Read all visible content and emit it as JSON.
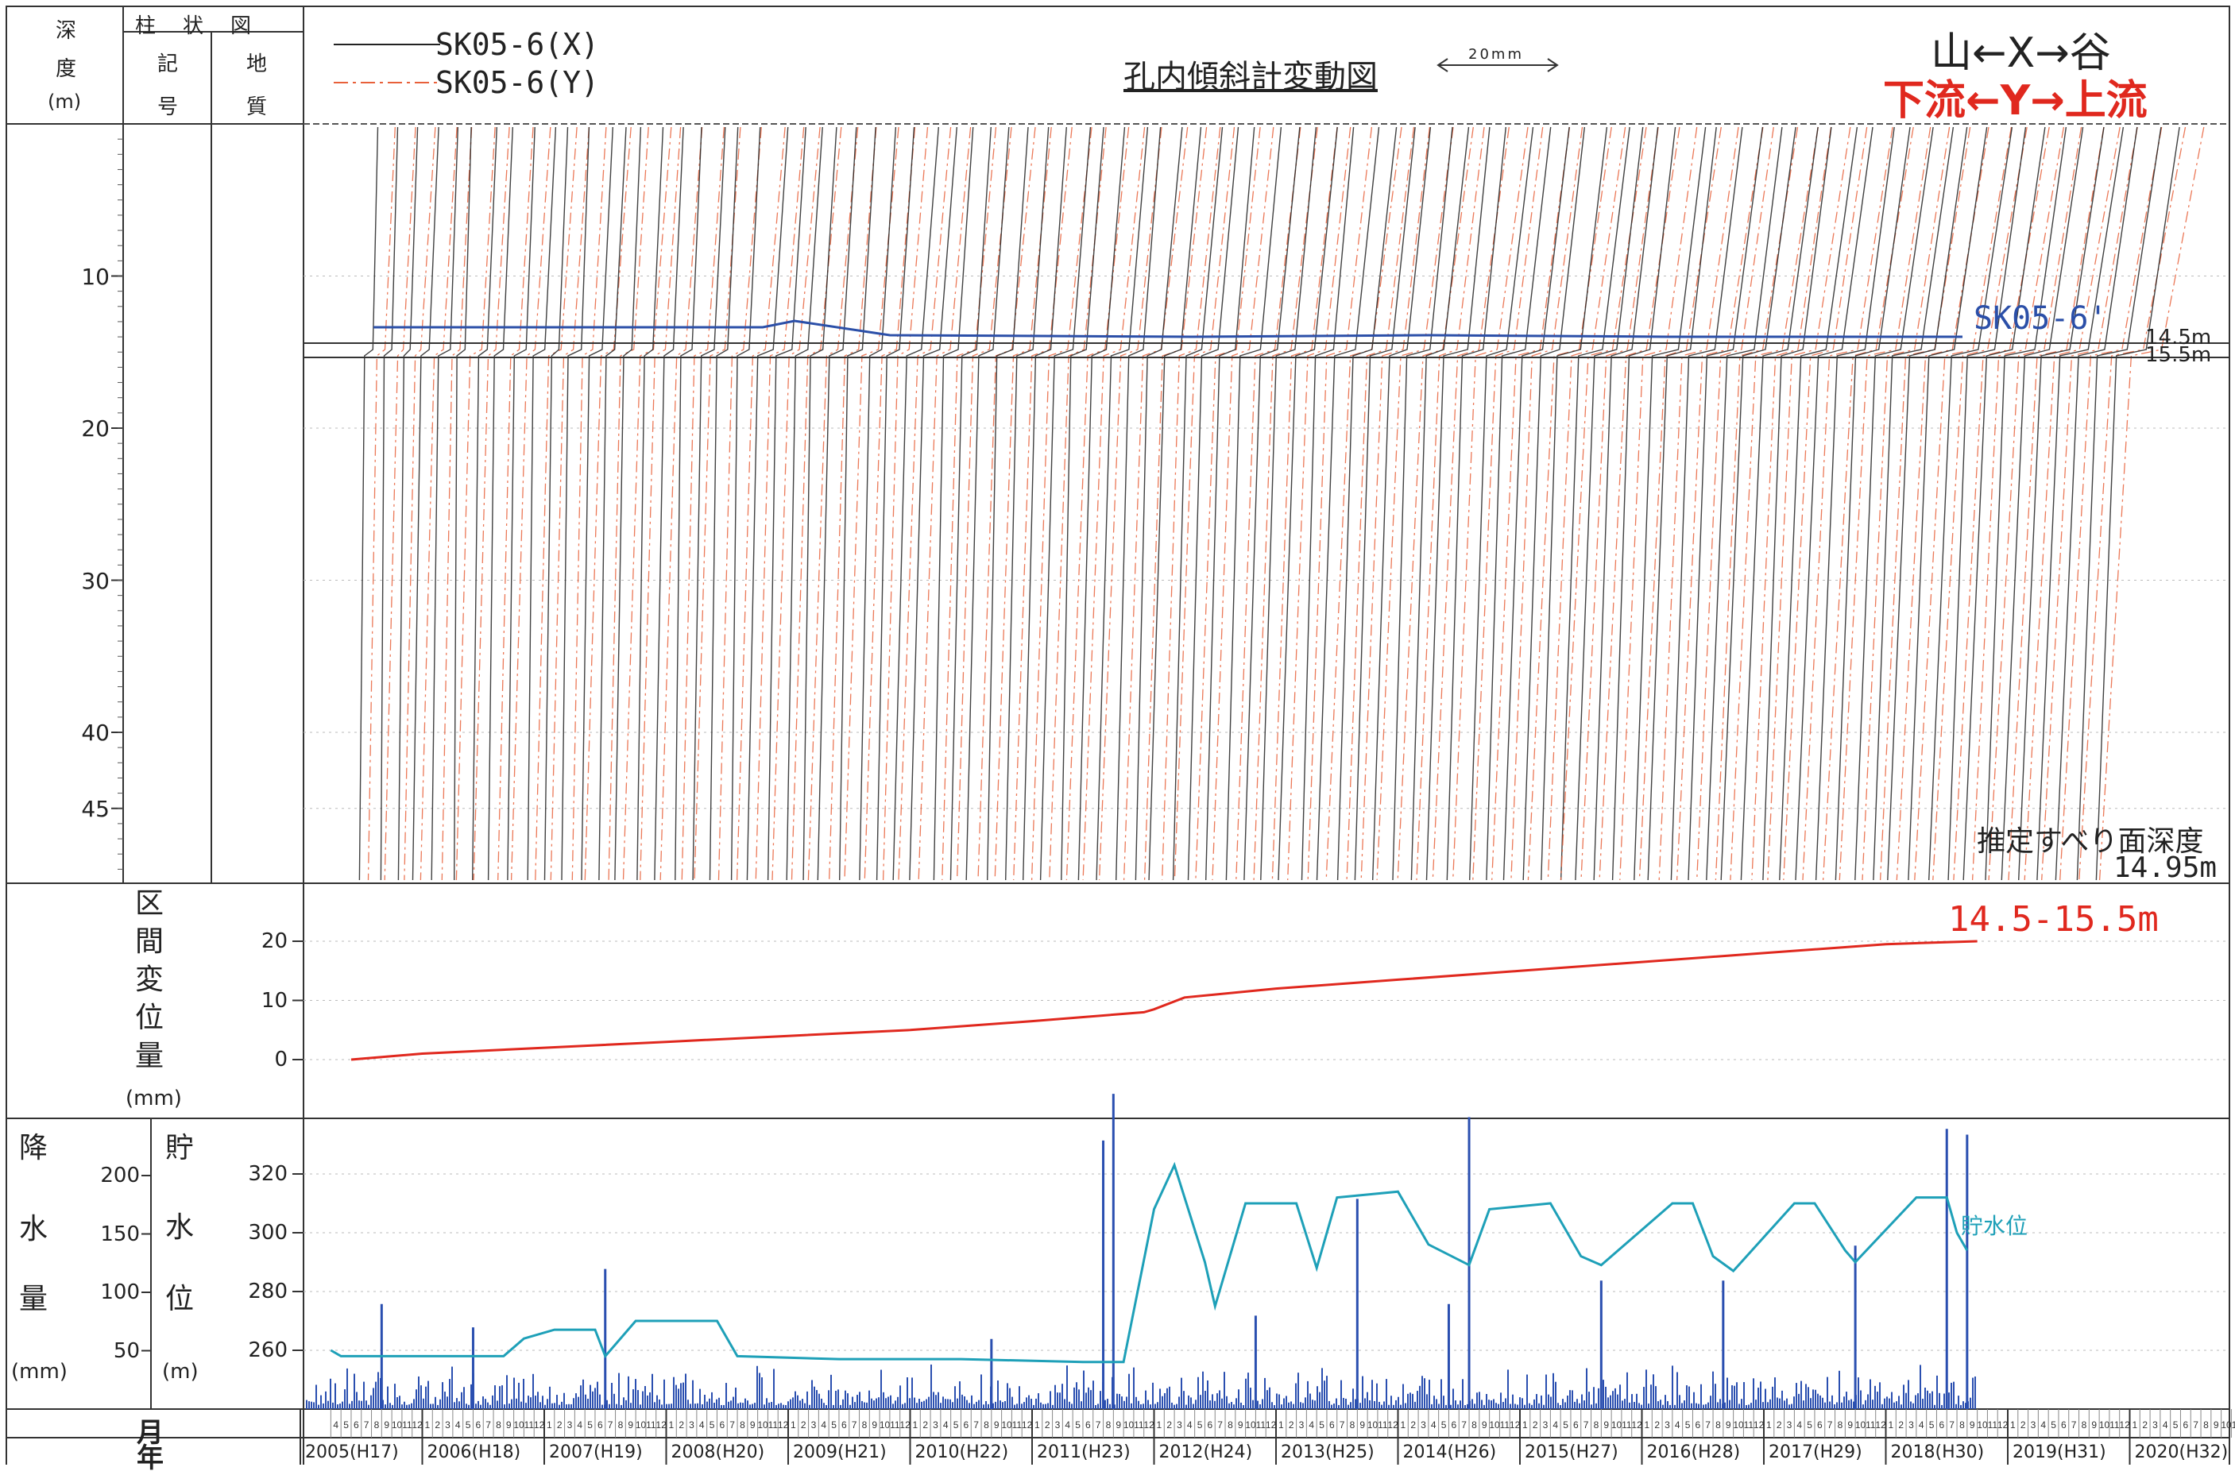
{
  "header": {
    "col_depth": [
      "深",
      "度",
      "(m)"
    ],
    "col_columnar": "柱　状　図",
    "col_symbol": [
      "記",
      "号"
    ],
    "col_geology": [
      "地",
      "質"
    ]
  },
  "legend": {
    "x_label": "SK05-6(X)",
    "y_label": "SK05-6(Y)",
    "x_color": "#222222",
    "y_color": "#e8603a"
  },
  "title": "孔内傾斜計変動図",
  "scale_bar": "20mm",
  "direction": {
    "x": "山←X→谷",
    "y": "下流←Y→上流",
    "x_color": "#222222",
    "y_color": "#e0281e"
  },
  "top_panel": {
    "sensor_label": "SK05-6'",
    "sensor_color": "#2b4fa8",
    "depth_ticks": [
      "10",
      "20",
      "30",
      "40",
      "45"
    ],
    "marker_upper": "14.5m",
    "marker_lower": "15.5m",
    "slip_label": "推定すべり面深度",
    "slip_value": "14.95m"
  },
  "mid_panel": {
    "ylabel": [
      "区",
      "間",
      "変",
      "位",
      "量"
    ],
    "unit": "(mm)",
    "series_label": "14.5-15.5m",
    "series_color": "#e0281e"
  },
  "bottom_panel": {
    "rain_label": [
      "降",
      "水",
      "量"
    ],
    "rain_unit": "(mm)",
    "water_label": [
      "貯",
      "水",
      "位"
    ],
    "water_unit": "(m)",
    "water_series_label": "貯水位",
    "rain_color": "#2a4fb0",
    "water_color": "#1ea0b8"
  },
  "x_axis": {
    "month_header": "月",
    "year_header": "年",
    "years": [
      "2005(H17)",
      "2006(H18)",
      "2007(H19)",
      "2008(H20)",
      "2009(H21)",
      "2010(H22)",
      "2011(H23)",
      "2012(H24)",
      "2013(H25)",
      "2014(H26)",
      "2015(H27)",
      "2016(H28)",
      "2017(H29)",
      "2018(H30)",
      "2019(H31)",
      "2020(H32)"
    ]
  },
  "chart_data": [
    {
      "type": "line",
      "title": "孔内傾斜計変動図",
      "ylabel": "深度(m)",
      "y_ticks": [
        10,
        20,
        30,
        40,
        45
      ],
      "ylim": [
        0,
        50
      ],
      "series": [
        {
          "name": "SK05-6(X)",
          "color": "#222222"
        },
        {
          "name": "SK05-6(Y)",
          "color": "#e8603a"
        }
      ],
      "annotations": [
        "14.5m",
        "15.5m",
        "推定すべり面深度 14.95m"
      ]
    },
    {
      "type": "line",
      "ylabel": "区間変位量(mm)",
      "y_ticks": [
        0,
        10,
        20
      ],
      "ylim": [
        -10,
        30
      ],
      "series": [
        {
          "name": "14.5-15.5m",
          "color": "#e0281e",
          "x": [
            "2005-06",
            "2006-01",
            "2007-01",
            "2008-01",
            "2009-01",
            "2010-01",
            "2011-01",
            "2011-12",
            "2012-01",
            "2012-04",
            "2013-01",
            "2014-01",
            "2015-01",
            "2016-01",
            "2017-01",
            "2018-01",
            "2018-10"
          ],
          "values": [
            0,
            1,
            2,
            3,
            4,
            5,
            6.5,
            8,
            8.5,
            10.5,
            12,
            13.5,
            15,
            16.5,
            18,
            19.5,
            20
          ]
        }
      ]
    },
    {
      "type": "bar",
      "ylabel": "降水量(mm)",
      "y_ticks": [
        50,
        100,
        150,
        200
      ],
      "ylim": [
        0,
        250
      ],
      "series": [
        {
          "name": "降水量",
          "color": "#2a4fb0",
          "x": [
            "2005-09",
            "2006-06",
            "2007-07",
            "2010-09",
            "2011-08",
            "2011-09",
            "2012-11",
            "2013-09",
            "2014-06",
            "2014-08",
            "2015-09",
            "2016-09",
            "2017-10",
            "2018-07",
            "2018-09"
          ],
          "values": [
            90,
            70,
            120,
            60,
            230,
            270,
            80,
            180,
            90,
            250,
            110,
            110,
            140,
            240,
            235
          ]
        }
      ]
    },
    {
      "type": "line",
      "ylabel": "貯水位(m)",
      "y_ticks": [
        260,
        280,
        300,
        320
      ],
      "ylim": [
        240,
        340
      ],
      "series": [
        {
          "name": "貯水位",
          "color": "#1ea0b8",
          "x": [
            "2005-04",
            "2005-05",
            "2006-09",
            "2006-11",
            "2007-02",
            "2007-06",
            "2007-07",
            "2007-10",
            "2008-06",
            "2008-08",
            "2009-06",
            "2010-06",
            "2011-06",
            "2011-10",
            "2012-01",
            "2012-03",
            "2012-06",
            "2012-07",
            "2012-10",
            "2013-03",
            "2013-05",
            "2013-07",
            "2014-01",
            "2014-04",
            "2014-08",
            "2014-10",
            "2015-04",
            "2015-07",
            "2015-09",
            "2016-04",
            "2016-06",
            "2016-08",
            "2016-10",
            "2017-04",
            "2017-06",
            "2017-09",
            "2017-10",
            "2018-04",
            "2018-07",
            "2018-08",
            "2018-09"
          ],
          "values": [
            260,
            258,
            258,
            264,
            267,
            267,
            258,
            270,
            270,
            258,
            257,
            257,
            256,
            256,
            308,
            323,
            290,
            275,
            310,
            310,
            288,
            312,
            314,
            296,
            289,
            308,
            310,
            292,
            289,
            310,
            310,
            292,
            287,
            310,
            310,
            294,
            290,
            312,
            312,
            300,
            294
          ]
        }
      ]
    }
  ]
}
